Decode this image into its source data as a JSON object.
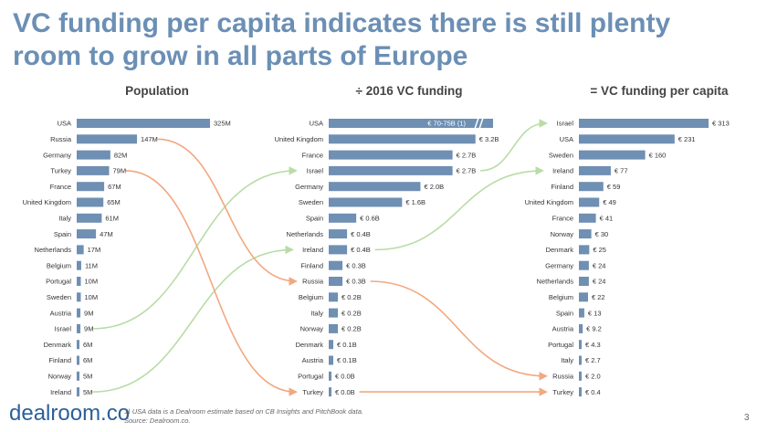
{
  "title": "VC funding per capita indicates there is still plenty room to grow in all parts of Europe",
  "footnote": {
    "line1": "1) USA data is a Dealroom estimate based on CB Insights and PitchBook data.",
    "line2": "Source: Dealroom.co."
  },
  "logo": "dealroom.co",
  "page_number": "3",
  "colors": {
    "title": "#6b8fb5",
    "bar": "#6f8fb3",
    "arrow_green": "#b9dca6",
    "arrow_orange": "#f2a880",
    "logo": "#2c5f99"
  },
  "chart_data": [
    {
      "type": "bar",
      "orientation": "horizontal",
      "title": "Population",
      "categories": [
        "USA",
        "Russia",
        "Germany",
        "Turkey",
        "France",
        "United Kingdom",
        "Italy",
        "Spain",
        "Netherlands",
        "Belgium",
        "Portugal",
        "Sweden",
        "Austria",
        "Israel",
        "Denmark",
        "Finland",
        "Norway",
        "Ireland"
      ],
      "values": [
        325,
        147,
        82,
        79,
        67,
        65,
        61,
        47,
        17,
        11,
        10,
        10,
        9,
        9,
        6,
        6,
        5,
        5
      ],
      "value_labels": [
        "325M",
        "147M",
        "82M",
        "79M",
        "67M",
        "65M",
        "61M",
        "47M",
        "17M",
        "11M",
        "10M",
        "10M",
        "9M",
        "9M",
        "6M",
        "6M",
        "5M",
        "5M"
      ]
    },
    {
      "type": "bar",
      "orientation": "horizontal",
      "title": "÷ 2016 VC funding",
      "categories": [
        "USA",
        "United Kingdom",
        "France",
        "Israel",
        "Germany",
        "Sweden",
        "Spain",
        "Netherlands",
        "Ireland",
        "Finland",
        "Russia",
        "Belgium",
        "Italy",
        "Norway",
        "Denmark",
        "Austria",
        "Portugal",
        "Turkey"
      ],
      "values": [
        73,
        3.2,
        2.7,
        2.7,
        2.0,
        1.6,
        0.6,
        0.4,
        0.4,
        0.3,
        0.3,
        0.2,
        0.2,
        0.2,
        0.1,
        0.1,
        0.0,
        0.0
      ],
      "value_labels": [
        "€ 70-75B (1)",
        "€ 3.2B",
        "€ 2.7B",
        "€ 2.7B",
        "€ 2.0B",
        "€ 1.6B",
        "€ 0.6B",
        "€ 0.4B",
        "€ 0.4B",
        "€ 0.3B",
        "€ 0.3B",
        "€ 0.2B",
        "€ 0.2B",
        "€ 0.2B",
        "€ 0.1B",
        "€ 0.1B",
        "€ 0.0B",
        "€ 0.0B"
      ],
      "axis_break_on": "USA"
    },
    {
      "type": "bar",
      "orientation": "horizontal",
      "title": "= VC funding per capita",
      "categories": [
        "Israel",
        "USA",
        "Sweden",
        "Ireland",
        "Finland",
        "United Kingdom",
        "France",
        "Norway",
        "Denmark",
        "Germany",
        "Netherlands",
        "Belgium",
        "Spain",
        "Austria",
        "Portugal",
        "Italy",
        "Russia",
        "Turkey"
      ],
      "values": [
        313,
        231,
        160,
        77,
        59,
        49,
        41,
        30,
        25,
        24,
        24,
        22,
        13,
        9.2,
        4.3,
        2.7,
        2.0,
        0.4
      ],
      "value_labels": [
        "€ 313",
        "€ 231",
        "€ 160",
        "€ 77",
        "€ 59",
        "€ 49",
        "€ 41",
        "€ 30",
        "€ 25",
        "€ 24",
        "€ 24",
        "€ 22",
        "€ 13",
        "€ 9.2",
        "€ 4.3",
        "€ 2.7",
        "€ 2.0",
        "€ 0.4"
      ]
    }
  ],
  "connectors": [
    {
      "country": "Israel",
      "color": "green",
      "from_panel": 0,
      "from_row": 13,
      "to_panel": 1,
      "to_row": 3
    },
    {
      "country": "Ireland",
      "color": "green",
      "from_panel": 0,
      "from_row": 17,
      "to_panel": 1,
      "to_row": 8
    },
    {
      "country": "Israel",
      "color": "green",
      "from_panel": 1,
      "from_row": 3,
      "to_panel": 2,
      "to_row": 0
    },
    {
      "country": "Ireland",
      "color": "green",
      "from_panel": 1,
      "from_row": 8,
      "to_panel": 2,
      "to_row": 3
    },
    {
      "country": "Russia",
      "color": "orange",
      "from_panel": 0,
      "from_row": 1,
      "to_panel": 1,
      "to_row": 10
    },
    {
      "country": "Turkey",
      "color": "orange",
      "from_panel": 0,
      "from_row": 3,
      "to_panel": 1,
      "to_row": 17
    },
    {
      "country": "Russia",
      "color": "orange",
      "from_panel": 1,
      "from_row": 10,
      "to_panel": 2,
      "to_row": 16
    },
    {
      "country": "Turkey",
      "color": "orange",
      "from_panel": 1,
      "from_row": 17,
      "to_panel": 2,
      "to_row": 17
    }
  ]
}
